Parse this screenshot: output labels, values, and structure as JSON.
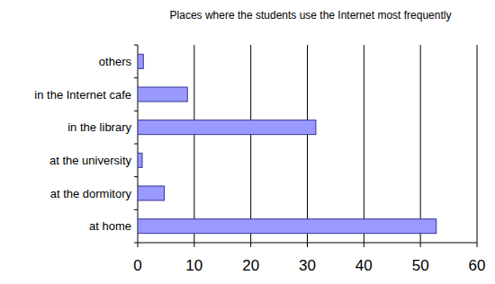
{
  "chart_data": {
    "type": "bar",
    "orientation": "horizontal",
    "title": "Places where the students use the Internet most frequently",
    "categories": [
      "others",
      "in the Internet cafe",
      "in the library",
      "at the university",
      "at the dormitory",
      "at home"
    ],
    "values": [
      1,
      8.8,
      31.5,
      0.8,
      4.7,
      52.8
    ],
    "color": "#9999ff",
    "xlim": [
      0,
      60
    ],
    "xticks": [
      0,
      10,
      20,
      30,
      40,
      50,
      60
    ],
    "grid": true
  }
}
